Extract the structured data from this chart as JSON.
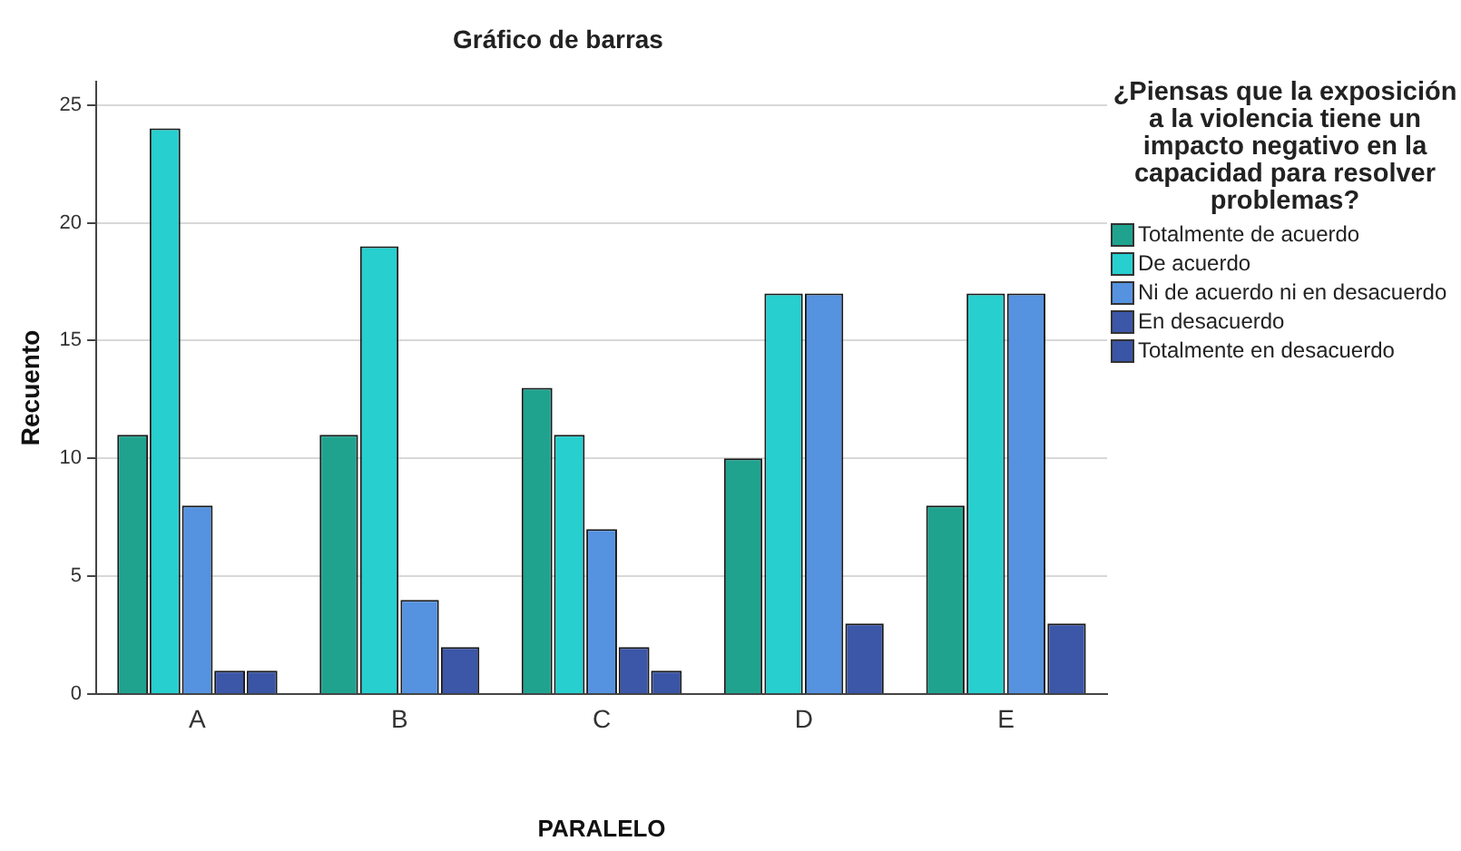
{
  "chart_data": {
    "type": "bar",
    "title": "Gráfico de barras",
    "xlabel": "PARALELO",
    "ylabel": "Recuento",
    "legend_title": "¿Piensas que la exposición a la violencia tiene un impacto negativo en la capacidad para resolver problemas?",
    "categories": [
      "A",
      "B",
      "C",
      "D",
      "E"
    ],
    "series": [
      {
        "name": "Totalmente de acuerdo",
        "color": "#1fa38f",
        "values": [
          11,
          11,
          13,
          10,
          8
        ]
      },
      {
        "name": "De acuerdo",
        "color": "#27cfcf",
        "values": [
          24,
          19,
          11,
          17,
          17
        ]
      },
      {
        "name": "Ni de acuerdo ni en desacuerdo",
        "color": "#5592e0",
        "values": [
          8,
          4,
          7,
          17,
          17
        ]
      },
      {
        "name": "En desacuerdo",
        "color": "#3c56a8",
        "values": [
          1,
          2,
          2,
          3,
          3
        ]
      },
      {
        "name": "Totalmente en desacuerdo",
        "color": "#3a55a5",
        "values": [
          1,
          null,
          1,
          null,
          null
        ]
      }
    ],
    "ylim": [
      0,
      26
    ],
    "yticks": [
      0,
      5,
      10,
      15,
      20,
      25
    ],
    "grid": "y",
    "legend": "right"
  }
}
